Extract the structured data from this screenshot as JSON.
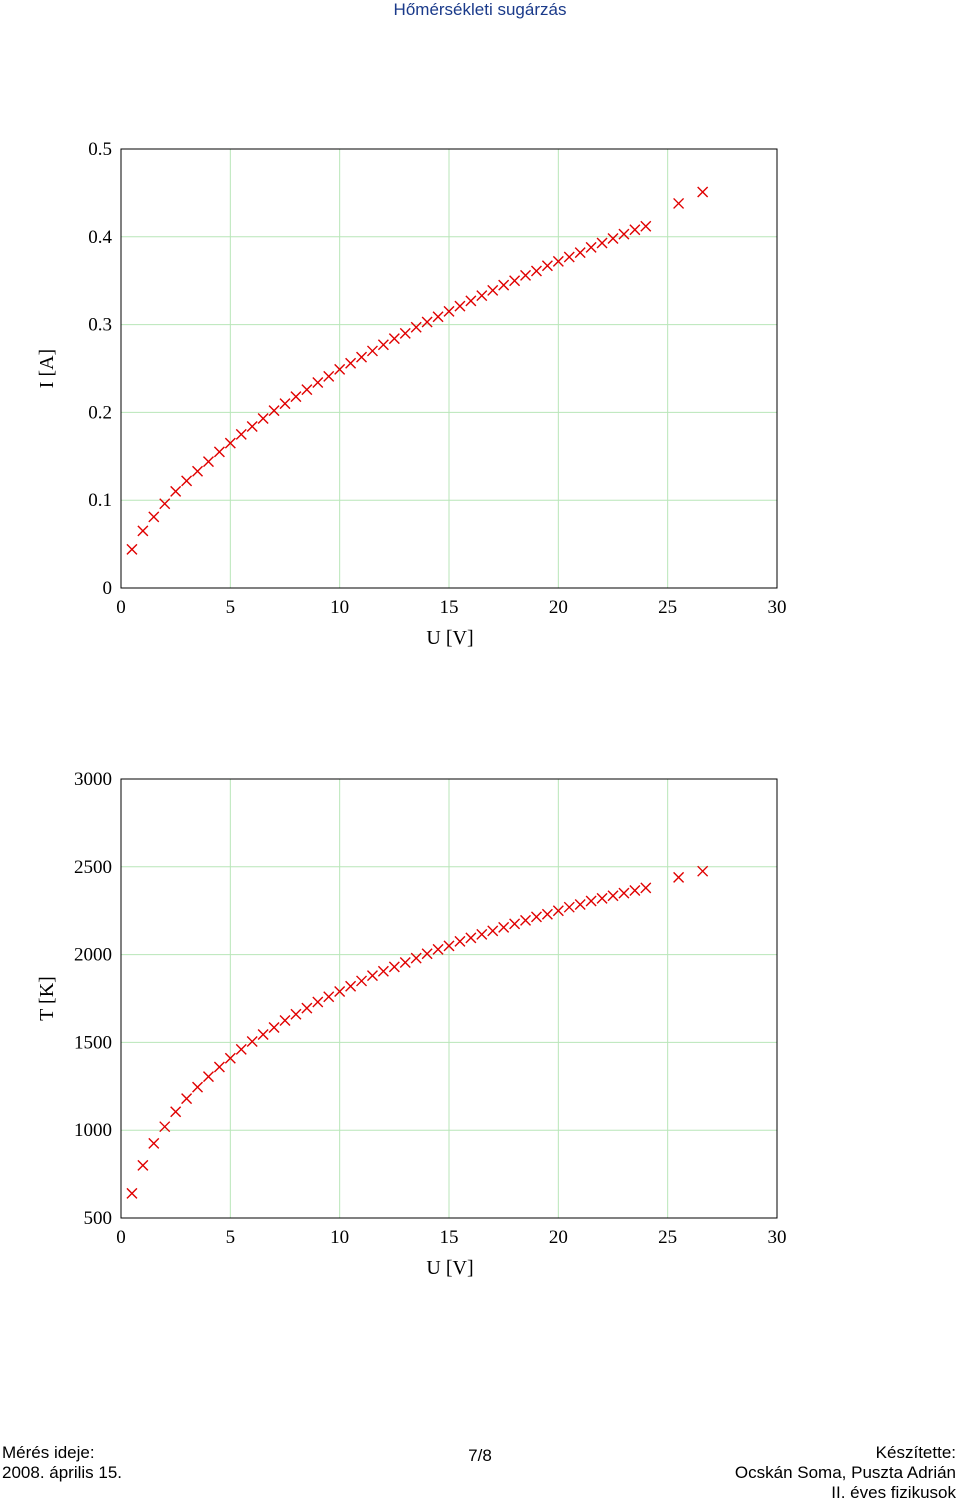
{
  "header": {
    "title": "Hőmérsékleti sugárzás"
  },
  "chart_data": [
    {
      "type": "scatter",
      "xlabel": "U [V]",
      "ylabel": "I [A]",
      "xlim": [
        0,
        30
      ],
      "ylim": [
        0,
        0.5
      ],
      "x_ticks": [
        "0",
        "5",
        "10",
        "15",
        "20",
        "25",
        "30"
      ],
      "y_ticks": [
        "0",
        "0.1",
        "0.2",
        "0.3",
        "0.4",
        "0.5"
      ],
      "grid": true,
      "marker": "x",
      "marker_color": "#e00000",
      "grid_color": "#b8e6b8",
      "series": [
        {
          "x": [
            0.5,
            1.0,
            1.5,
            2.0,
            2.5,
            3.0,
            3.5,
            4.0,
            4.5,
            5.0,
            5.5,
            6.0,
            6.5,
            7.0,
            7.5,
            8.0,
            8.5,
            9.0,
            9.5,
            10.0,
            10.5,
            11.0,
            11.5,
            12.0,
            12.5,
            13.0,
            13.5,
            14.0,
            14.5,
            15.0,
            15.5,
            16.0,
            16.5,
            17.0,
            17.5,
            18.0,
            18.5,
            19.0,
            19.5,
            20.0,
            20.5,
            21.0,
            21.5,
            22.0,
            22.5,
            23.0,
            23.5,
            24.0,
            25.5,
            26.6
          ],
          "y": [
            0.044,
            0.065,
            0.081,
            0.096,
            0.11,
            0.122,
            0.133,
            0.144,
            0.155,
            0.165,
            0.175,
            0.184,
            0.193,
            0.202,
            0.21,
            0.218,
            0.226,
            0.234,
            0.241,
            0.249,
            0.256,
            0.263,
            0.27,
            0.277,
            0.284,
            0.29,
            0.297,
            0.303,
            0.309,
            0.315,
            0.321,
            0.327,
            0.333,
            0.339,
            0.345,
            0.35,
            0.356,
            0.361,
            0.367,
            0.372,
            0.377,
            0.382,
            0.388,
            0.393,
            0.398,
            0.403,
            0.408,
            0.412,
            0.438,
            0.451
          ]
        }
      ]
    },
    {
      "type": "scatter",
      "xlabel": "U [V]",
      "ylabel": "T [K]",
      "xlim": [
        0,
        30
      ],
      "ylim": [
        500,
        3000
      ],
      "x_ticks": [
        "0",
        "5",
        "10",
        "15",
        "20",
        "25",
        "30"
      ],
      "y_ticks": [
        "500",
        "1000",
        "1500",
        "2000",
        "2500",
        "3000"
      ],
      "grid": true,
      "marker": "x",
      "marker_color": "#e00000",
      "grid_color": "#b8e6b8",
      "series": [
        {
          "x": [
            0.5,
            1.0,
            1.5,
            2.0,
            2.5,
            3.0,
            3.5,
            4.0,
            4.5,
            5.0,
            5.5,
            6.0,
            6.5,
            7.0,
            7.5,
            8.0,
            8.5,
            9.0,
            9.5,
            10.0,
            10.5,
            11.0,
            11.5,
            12.0,
            12.5,
            13.0,
            13.5,
            14.0,
            14.5,
            15.0,
            15.5,
            16.0,
            16.5,
            17.0,
            17.5,
            18.0,
            18.5,
            19.0,
            19.5,
            20.0,
            20.5,
            21.0,
            21.5,
            22.0,
            22.5,
            23.0,
            23.5,
            24.0,
            25.5,
            26.6
          ],
          "y": [
            640,
            800,
            925,
            1020,
            1105,
            1180,
            1245,
            1305,
            1360,
            1410,
            1460,
            1505,
            1545,
            1585,
            1625,
            1660,
            1695,
            1730,
            1760,
            1790,
            1820,
            1850,
            1880,
            1905,
            1930,
            1955,
            1980,
            2005,
            2030,
            2050,
            2075,
            2095,
            2115,
            2135,
            2155,
            2175,
            2195,
            2215,
            2230,
            2250,
            2270,
            2285,
            2305,
            2320,
            2335,
            2350,
            2365,
            2380,
            2440,
            2475
          ]
        }
      ]
    }
  ],
  "footer": {
    "left_line1": "Mérés ideje:",
    "left_line2": "2008. április 15.",
    "center": "7/8",
    "right_line1": "Készítette:",
    "right_line2": "Ocskán Soma, Puszta Adrián",
    "right_line3": "II. éves fizikusok"
  }
}
